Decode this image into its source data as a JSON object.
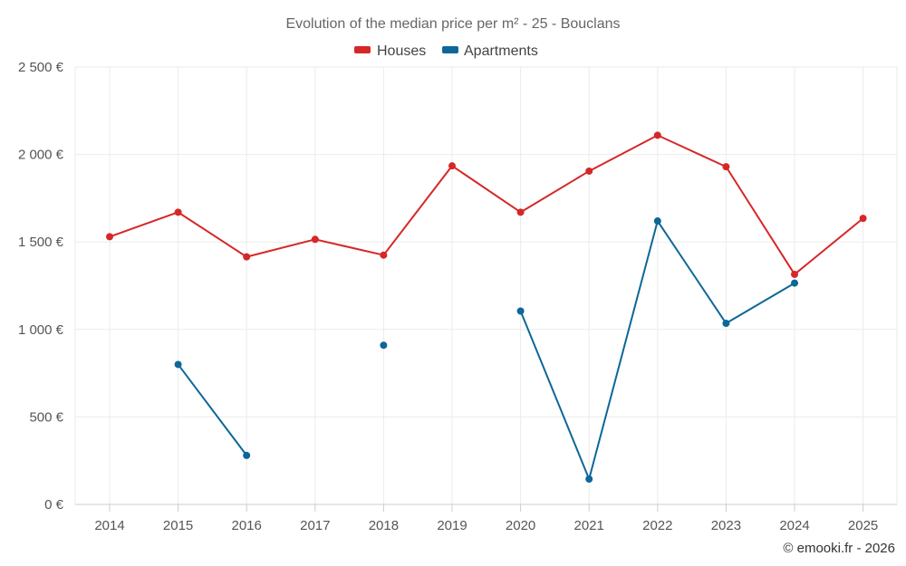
{
  "chart_data": {
    "type": "line",
    "title": "Evolution of the median price per m² - 25 - Bouclans",
    "categories": [
      "2014",
      "2015",
      "2016",
      "2017",
      "2018",
      "2019",
      "2020",
      "2021",
      "2022",
      "2023",
      "2024",
      "2025"
    ],
    "y_tick_labels": [
      "0 €",
      "500 €",
      "1 000 €",
      "1 500 €",
      "2 000 €",
      "2 500 €"
    ],
    "y_ticks": [
      0,
      500,
      1000,
      1500,
      2000,
      2500
    ],
    "ylim": [
      0,
      2500
    ],
    "grid": true,
    "legend_position": "top-center",
    "series": [
      {
        "name": "Houses",
        "color": "#d62728",
        "values": [
          1530,
          1670,
          1415,
          1515,
          1425,
          1935,
          1670,
          1905,
          2110,
          1930,
          1315,
          1635
        ]
      },
      {
        "name": "Apartments",
        "color": "#0d6797",
        "values": [
          null,
          800,
          280,
          null,
          910,
          null,
          1105,
          145,
          1620,
          1035,
          1265,
          null
        ]
      }
    ],
    "credit": "© emooki.fr - 2026"
  }
}
